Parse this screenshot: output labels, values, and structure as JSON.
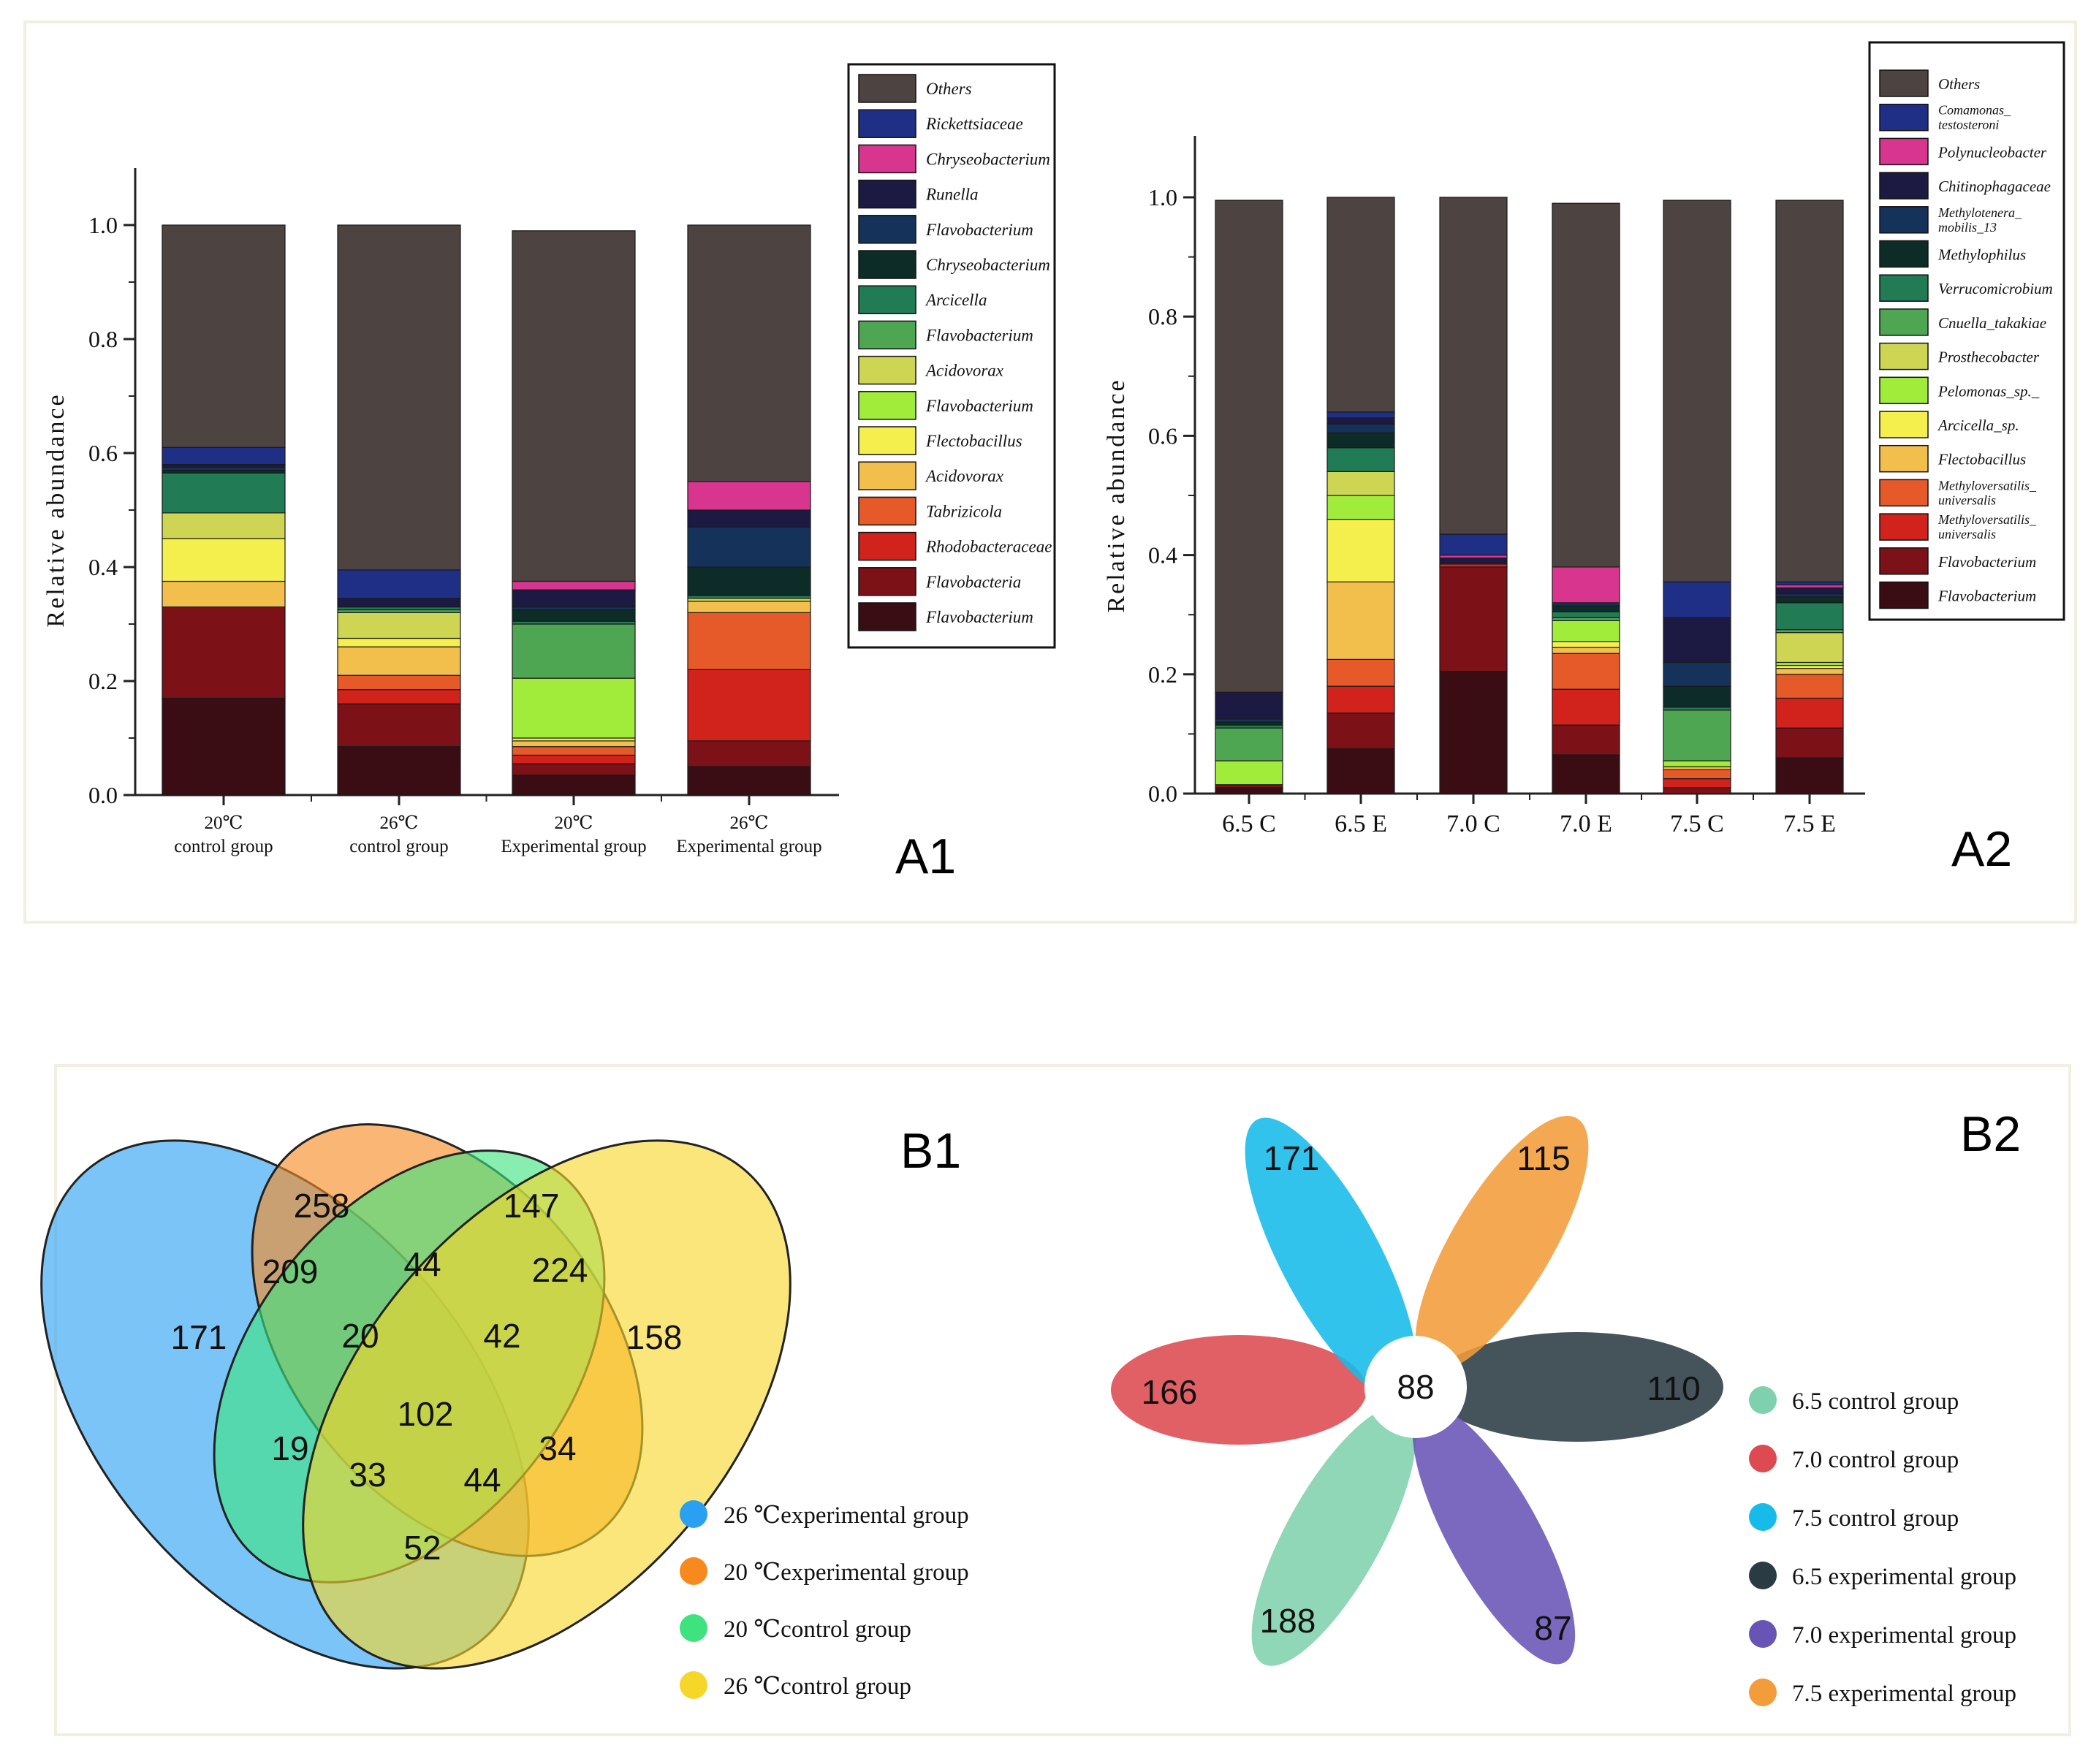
{
  "panels": {
    "a1": "A1",
    "a2": "A2",
    "b1": "B1",
    "b2": "B2"
  },
  "chart_data": [
    {
      "id": "A1",
      "type": "bar",
      "stacked": true,
      "ylabel": "Relative abundance",
      "ylim": [
        0,
        1.0
      ],
      "yticks": [
        "0.0",
        "0.2",
        "0.4",
        "0.6",
        "0.8",
        "1.0"
      ],
      "categories": [
        [
          "20℃",
          "control group"
        ],
        [
          "26℃",
          "control group"
        ],
        [
          "20℃",
          "Experimental group"
        ],
        [
          "26℃",
          "Experimental group"
        ]
      ],
      "legend": "right",
      "series": [
        {
          "name": "Flavobacterium",
          "color": "#3a0c14",
          "values": [
            0.17,
            0.085,
            0.035,
            0.05
          ]
        },
        {
          "name": "Flavobacteria",
          "color": "#7c1118",
          "values": [
            0.16,
            0.075,
            0.02,
            0.045
          ]
        },
        {
          "name": "Rhodobacteraceae",
          "color": "#d2221c",
          "values": [
            0.0,
            0.025,
            0.015,
            0.125
          ]
        },
        {
          "name": "Tabrizicola",
          "color": "#e55a28",
          "values": [
            0.0,
            0.025,
            0.015,
            0.1
          ]
        },
        {
          "name": "Acidovorax",
          "color": "#f3bf4c",
          "values": [
            0.045,
            0.05,
            0.01,
            0.02
          ]
        },
        {
          "name": "Flectobacillus",
          "color": "#f5ef4d",
          "values": [
            0.075,
            0.015,
            0.005,
            0.0
          ]
        },
        {
          "name": "Flavobacterium",
          "color": "#a1ec3b",
          "values": [
            0.0,
            0.0,
            0.105,
            0.0
          ]
        },
        {
          "name": "Acidovorax",
          "color": "#cdd553",
          "values": [
            0.045,
            0.045,
            0.0,
            0.005
          ]
        },
        {
          "name": "Flavobacterium",
          "color": "#4ea653",
          "values": [
            0.0,
            0.005,
            0.095,
            0.0
          ]
        },
        {
          "name": "Arcicella",
          "color": "#217b55",
          "values": [
            0.07,
            0.005,
            0.005,
            0.005
          ]
        },
        {
          "name": "Chryseobacterium",
          "color": "#0e2c27",
          "values": [
            0.005,
            0.0,
            0.02,
            0.05
          ]
        },
        {
          "name": "Flavobacterium",
          "color": "#15325a",
          "values": [
            0.005,
            0.0,
            0.005,
            0.07
          ]
        },
        {
          "name": "Runella",
          "color": "#1c1a43",
          "values": [
            0.005,
            0.015,
            0.03,
            0.03
          ]
        },
        {
          "name": "Chryseobacterium",
          "color": "#d8358f",
          "values": [
            0.0,
            0.0,
            0.015,
            0.05
          ]
        },
        {
          "name": "Rickettsiaceae",
          "color": "#1f2f86",
          "values": [
            0.03,
            0.05,
            0.0,
            0.0
          ]
        },
        {
          "name": "Others",
          "color": "#4d4442",
          "values": [
            0.39,
            0.605,
            0.615,
            0.45
          ]
        }
      ]
    },
    {
      "id": "A2",
      "type": "bar",
      "stacked": true,
      "ylabel": "Relative abundance",
      "ylim": [
        0,
        1.0
      ],
      "yticks": [
        "0.0",
        "0.2",
        "0.4",
        "0.6",
        "0.8",
        "1.0"
      ],
      "categories": [
        "6.5 C",
        "6.5 E",
        "7.0 C",
        "7.0 E",
        "7.5 C",
        "7.5 E"
      ],
      "legend": "right",
      "series": [
        {
          "name": "Flavobacterium",
          "color": "#3a0c14",
          "values": [
            0.01,
            0.075,
            0.205,
            0.065,
            0.0,
            0.06
          ]
        },
        {
          "name": "Flavobacterium",
          "color": "#7c1118",
          "values": [
            0.005,
            0.06,
            0.175,
            0.05,
            0.01,
            0.05
          ]
        },
        {
          "name": "Methyloversatilis_ universalis",
          "color": "#d2221c",
          "values": [
            0.0,
            0.045,
            0.005,
            0.06,
            0.015,
            0.05
          ]
        },
        {
          "name": "Methyloversatilis_ universalis",
          "color": "#e55a28",
          "values": [
            0.0,
            0.045,
            0.0,
            0.06,
            0.015,
            0.04
          ]
        },
        {
          "name": "Flectobacillus",
          "color": "#f3bf4c",
          "values": [
            0.0,
            0.13,
            0.0,
            0.01,
            0.005,
            0.01
          ]
        },
        {
          "name": "Arcicella_sp.",
          "color": "#f5ef4d",
          "values": [
            0.0,
            0.105,
            0.0,
            0.01,
            0.0,
            0.005
          ]
        },
        {
          "name": "Pelomonas_sp._",
          "color": "#a1ec3b",
          "values": [
            0.04,
            0.04,
            0.0,
            0.035,
            0.01,
            0.005
          ]
        },
        {
          "name": "Prosthecobacter",
          "color": "#cdd553",
          "values": [
            0.0,
            0.04,
            0.0,
            0.0,
            0.0,
            0.05
          ]
        },
        {
          "name": "Cnuella_takakiae",
          "color": "#4ea653",
          "values": [
            0.055,
            0.0,
            0.0,
            0.005,
            0.085,
            0.005
          ]
        },
        {
          "name": "Verrucomicrobium",
          "color": "#217b55",
          "values": [
            0.005,
            0.04,
            0.0,
            0.01,
            0.005,
            0.045
          ]
        },
        {
          "name": "Methylophilus",
          "color": "#0e2c27",
          "values": [
            0.005,
            0.025,
            0.0,
            0.01,
            0.035,
            0.01
          ]
        },
        {
          "name": "Methylotenera_ mobilis_13",
          "color": "#15325a",
          "values": [
            0.005,
            0.015,
            0.0,
            0.005,
            0.04,
            0.005
          ]
        },
        {
          "name": "Chitinophagaceae",
          "color": "#1c1a43",
          "values": [
            0.045,
            0.01,
            0.01,
            0.0,
            0.075,
            0.01
          ]
        },
        {
          "name": "Polynucleobacter",
          "color": "#d8358f",
          "values": [
            0.0,
            0.0,
            0.005,
            0.06,
            0.0,
            0.005
          ]
        },
        {
          "name": "Comamonas_ testosteroni",
          "color": "#1f2f86",
          "values": [
            0.0,
            0.01,
            0.035,
            0.0,
            0.06,
            0.005
          ]
        },
        {
          "name": "Others",
          "color": "#4d4442",
          "values": [
            0.825,
            0.36,
            0.565,
            0.61,
            0.64,
            0.64
          ]
        }
      ]
    },
    {
      "id": "B1",
      "type": "venn",
      "sets": [
        {
          "name": "26 ℃experimental group",
          "color": "#2aa0f2"
        },
        {
          "name": "20 ℃experimental group",
          "color": "#f7891f"
        },
        {
          "name": "20 ℃control group",
          "color": "#3ee37f"
        },
        {
          "name": "26 ℃control group",
          "color": "#f7d62a"
        }
      ],
      "regions": [
        "258",
        "147",
        "171",
        "158",
        "209",
        "44",
        "224",
        "20",
        "42",
        "102",
        "19",
        "34",
        "33",
        "44",
        "52"
      ]
    },
    {
      "id": "B2",
      "type": "flower",
      "center": "88",
      "petals": [
        {
          "name": "6.5 control group",
          "color": "#7fd1ad",
          "value": "188"
        },
        {
          "name": "7.0 control group",
          "color": "#dd4a51",
          "value": "166"
        },
        {
          "name": "7.5 control group",
          "color": "#16bbe9",
          "value": "171"
        },
        {
          "name": "6.5 experimental group",
          "color": "#2b3b44",
          "value": "110"
        },
        {
          "name": "7.0 experimental group",
          "color": "#6854b5",
          "value": "87"
        },
        {
          "name": "7.5 experimental group",
          "color": "#f29c3a",
          "value": "115"
        }
      ]
    }
  ]
}
